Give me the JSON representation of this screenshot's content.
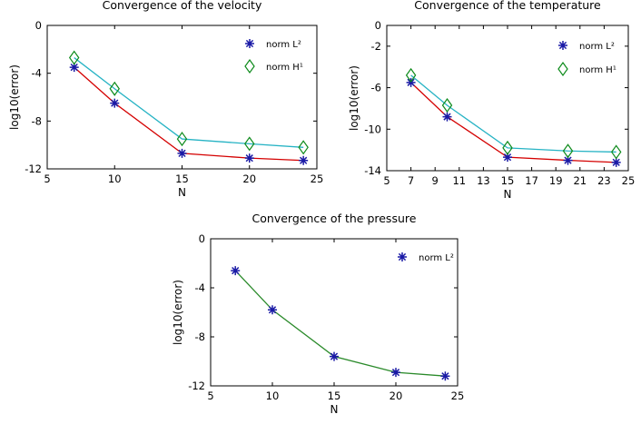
{
  "chart_data": [
    {
      "type": "line",
      "title": "Convergence of the velocity",
      "xlabel": "N",
      "ylabel": "log10(error)",
      "xlim": [
        5,
        25
      ],
      "ylim": [
        -12,
        0
      ],
      "xticks": [
        "5",
        "10",
        "15",
        "20",
        "25"
      ],
      "yticks": [
        "-12",
        "-8",
        "-4",
        "0"
      ],
      "legend_position": "top-right",
      "x": [
        7,
        10,
        15,
        20,
        24
      ],
      "series": [
        {
          "name": "norm L²",
          "values": [
            -3.5,
            -6.5,
            -10.7,
            -11.1,
            -11.3
          ],
          "color": "#d40000",
          "marker": "star",
          "marker_color": "#1a1aa6"
        },
        {
          "name": "norm H¹",
          "values": [
            -2.7,
            -5.3,
            -9.5,
            -9.9,
            -10.2
          ],
          "color": "#26b3c4",
          "marker": "diamond",
          "marker_color": "#0c8a1a"
        }
      ]
    },
    {
      "type": "line",
      "title": "Convergence of the temperature",
      "xlabel": "N",
      "ylabel": "log10(error)",
      "xlim": [
        5,
        25
      ],
      "ylim": [
        -14,
        0
      ],
      "xticks": [
        "5",
        "7",
        "9",
        "11",
        "13",
        "15",
        "17",
        "19",
        "21",
        "23",
        "25"
      ],
      "yticks": [
        "-14",
        "-10",
        "-6",
        "-2",
        "0"
      ],
      "legend_position": "top-right",
      "x": [
        7,
        10,
        15,
        20,
        24
      ],
      "series": [
        {
          "name": "norm L²",
          "values": [
            -5.5,
            -8.8,
            -12.7,
            -13.0,
            -13.2
          ],
          "color": "#d40000",
          "marker": "star",
          "marker_color": "#1a1aa6"
        },
        {
          "name": "norm H¹",
          "values": [
            -4.8,
            -7.7,
            -11.8,
            -12.1,
            -12.2
          ],
          "color": "#26b3c4",
          "marker": "diamond",
          "marker_color": "#0c8a1a"
        }
      ]
    },
    {
      "type": "line",
      "title": "Convergence of the pressure",
      "xlabel": "N",
      "ylabel": "log10(error)",
      "xlim": [
        5,
        25
      ],
      "ylim": [
        -12,
        0
      ],
      "xticks": [
        "5",
        "10",
        "15",
        "20",
        "25"
      ],
      "yticks": [
        "-12",
        "-8",
        "-4",
        "0"
      ],
      "legend_position": "top-right",
      "x": [
        7,
        10,
        15,
        20,
        24
      ],
      "series": [
        {
          "name": "norm L²",
          "values": [
            -2.6,
            -5.8,
            -9.6,
            -10.9,
            -11.2
          ],
          "color": "#2a8a2a",
          "marker": "star",
          "marker_color": "#1a1aa6"
        }
      ]
    }
  ]
}
